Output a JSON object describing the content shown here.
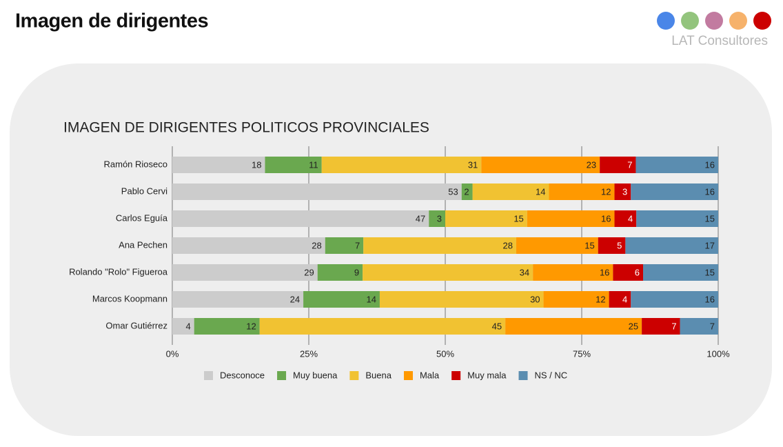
{
  "header": {
    "title": "Imagen de dirigentes",
    "brand": "LAT Consultores"
  },
  "chart_data": {
    "type": "stacked-bar-100",
    "orientation": "horizontal",
    "title": "IMAGEN DE DIRIGENTES POLITICOS PROVINCIALES",
    "categories": [
      "Ramón Rioseco",
      "Pablo Cervi",
      "Carlos Eguía",
      "Ana Pechen",
      "Rolando \"Rolo\" Figueroa",
      "Marcos Koopmann",
      "Omar Gutiérrez"
    ],
    "series": [
      {
        "name": "Desconoce",
        "color": "#cccccc",
        "values": [
          18,
          53,
          47,
          28,
          29,
          24,
          4
        ]
      },
      {
        "name": "Muy buena",
        "color": "#6aa84f",
        "values": [
          11,
          2,
          3,
          7,
          9,
          14,
          12
        ]
      },
      {
        "name": "Buena",
        "color": "#f1c232",
        "values": [
          31,
          14,
          15,
          28,
          34,
          30,
          45
        ]
      },
      {
        "name": "Mala",
        "color": "#ff9900",
        "values": [
          23,
          12,
          16,
          15,
          16,
          12,
          25
        ]
      },
      {
        "name": "Muy mala",
        "color": "#cc0000",
        "values": [
          7,
          3,
          4,
          5,
          6,
          4,
          7
        ]
      },
      {
        "name": "NS / NC",
        "color": "#5b8db0",
        "values": [
          16,
          16,
          15,
          17,
          15,
          16,
          7
        ]
      }
    ],
    "xlim": [
      0,
      100
    ],
    "xticks": [
      {
        "value": 0,
        "label": "0%"
      },
      {
        "value": 25,
        "label": "25%"
      },
      {
        "value": 50,
        "label": "50%"
      },
      {
        "value": 75,
        "label": "75%"
      },
      {
        "value": 100,
        "label": "100%"
      }
    ],
    "grid": true,
    "legend": "bottom"
  }
}
